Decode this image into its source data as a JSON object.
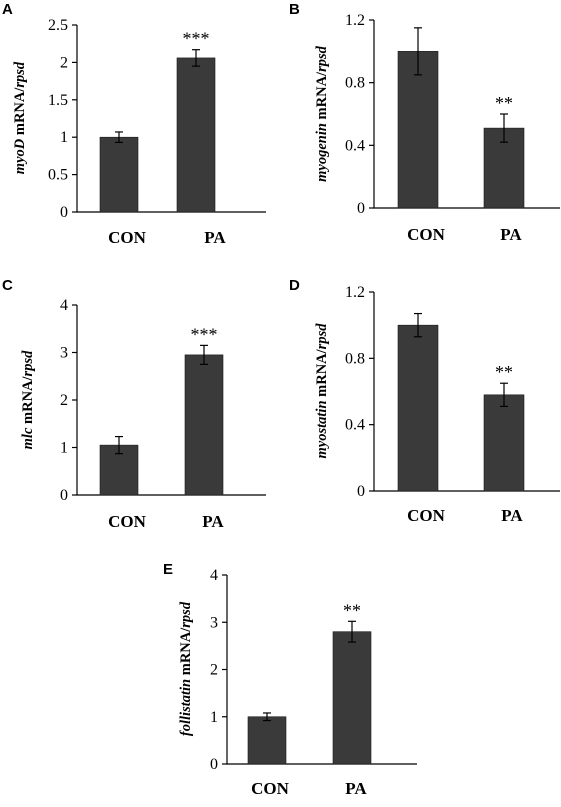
{
  "colors": {
    "bar": "#3a3a3a",
    "axis": "#000000"
  },
  "chart_data": [
    {
      "panel": "A",
      "type": "bar",
      "ylabel": {
        "italic": "myoD",
        "plain": " mRNA/",
        "italic2": "rpsd"
      },
      "categories": [
        "CON",
        "PA"
      ],
      "values": [
        1.0,
        2.06
      ],
      "errors": [
        0.07,
        0.11
      ],
      "significance": [
        "",
        "***"
      ],
      "ylim": [
        0,
        2.5
      ],
      "yticks": [
        "0",
        "0.5",
        "1",
        "1.5",
        "2",
        "2.5"
      ],
      "ytick_values": [
        0,
        0.5,
        1,
        1.5,
        2,
        2.5
      ]
    },
    {
      "panel": "B",
      "type": "bar",
      "ylabel": {
        "italic": "myogenin",
        "plain": " mRNA/",
        "italic2": "rpsd"
      },
      "categories": [
        "CON",
        "PA"
      ],
      "values": [
        1.0,
        0.51
      ],
      "errors": [
        0.15,
        0.09
      ],
      "significance": [
        "",
        "**"
      ],
      "ylim": [
        0,
        1.2
      ],
      "yticks": [
        "0",
        "0.4",
        "0.8",
        "1.2"
      ],
      "ytick_values": [
        0,
        0.4,
        0.8,
        1.2
      ]
    },
    {
      "panel": "C",
      "type": "bar",
      "ylabel": {
        "italic": "mlc",
        "plain": " mRNA/",
        "italic2": "rpsd"
      },
      "categories": [
        "CON",
        "PA"
      ],
      "values": [
        1.05,
        2.95
      ],
      "errors": [
        0.18,
        0.2
      ],
      "significance": [
        "",
        "***"
      ],
      "ylim": [
        0,
        4
      ],
      "yticks": [
        "0",
        "1",
        "2",
        "3",
        "4"
      ],
      "ytick_values": [
        0,
        1,
        2,
        3,
        4
      ]
    },
    {
      "panel": "D",
      "type": "bar",
      "ylabel": {
        "italic": "myostatin",
        "plain": " mRNA/",
        "italic2": "rpsd"
      },
      "categories": [
        "CON",
        "PA"
      ],
      "values": [
        1.0,
        0.58
      ],
      "errors": [
        0.07,
        0.07
      ],
      "significance": [
        "",
        "**"
      ],
      "ylim": [
        0,
        1.2
      ],
      "yticks": [
        "0",
        "0.4",
        "0.8",
        "1.2"
      ],
      "ytick_values": [
        0,
        0.4,
        0.8,
        1.2
      ]
    },
    {
      "panel": "E",
      "type": "bar",
      "ylabel": {
        "italic": "follistatin",
        "plain": " mRNA/",
        "italic2": "rpsd"
      },
      "categories": [
        "CON",
        "PA"
      ],
      "values": [
        1.0,
        2.8
      ],
      "errors": [
        0.08,
        0.22
      ],
      "significance": [
        "",
        "**"
      ],
      "ylim": [
        0,
        4
      ],
      "yticks": [
        "0",
        "1",
        "2",
        "3",
        "4"
      ],
      "ytick_values": [
        0,
        1,
        2,
        3,
        4
      ]
    }
  ]
}
